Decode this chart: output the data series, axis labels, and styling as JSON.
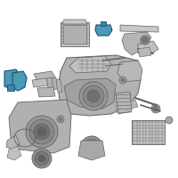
{
  "bg_color": "#ffffff",
  "highlight_color": "#4a9ab5",
  "part_color": "#a8a8a8",
  "part_edge": "#606060",
  "part_dark": "#787878",
  "part_light": "#c8c8c8",
  "dpi": 100
}
